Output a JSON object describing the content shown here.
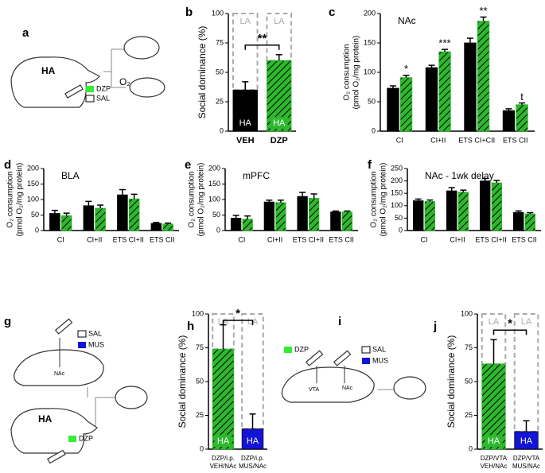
{
  "chart_data": [
    {
      "type": "bar",
      "panel": "b",
      "ylabel": [
        "Social dominance (%)"
      ],
      "categories": [
        [
          "VEH"
        ],
        [
          "DZP"
        ]
      ],
      "values": [
        35,
        60
      ],
      "errors": [
        7,
        5
      ],
      "bar_colors": [
        "#000000",
        "#2db82d"
      ],
      "bar_hatch": [
        false,
        true
      ],
      "bar_labels": [
        "HA",
        "HA"
      ],
      "top_labels": [
        "LA",
        "LA"
      ],
      "brackets": [
        {
          "text": "**",
          "between": [
            0,
            1
          ]
        }
      ],
      "ylim": [
        0,
        100
      ],
      "yticks": [
        0,
        25,
        50,
        75,
        100
      ]
    },
    {
      "type": "bar",
      "panel": "c",
      "title": "NAc",
      "ylabel": [
        "O₂ consumption",
        "(pmol O₂/mg protein)"
      ],
      "categories": [
        [
          "CI"
        ],
        [
          "CI+II"
        ],
        [
          "ETS CI+CII"
        ],
        [
          "ETS CII"
        ]
      ],
      "series": [
        {
          "color": "#000000",
          "values": [
            73,
            108,
            150,
            35
          ],
          "errors": [
            4,
            4,
            8,
            3
          ]
        },
        {
          "color": "#2db82d",
          "hatch": true,
          "values": [
            91,
            135,
            187,
            45
          ],
          "errors": [
            4,
            4,
            7,
            3
          ]
        }
      ],
      "annotations": [
        {
          "text": "*",
          "category": 0
        },
        {
          "text": "***",
          "category": 1
        },
        {
          "text": "**",
          "category": 2
        },
        {
          "text": "t",
          "category": 3
        }
      ],
      "ylim": [
        0,
        200
      ],
      "yticks": [
        0,
        50,
        100,
        150,
        200
      ]
    },
    {
      "type": "bar",
      "panel": "d",
      "title": "BLA",
      "ylabel": [
        "O₂ consumption",
        "(pmol O₂/mg protein)"
      ],
      "categories": [
        [
          "CI"
        ],
        [
          "CI+II"
        ],
        [
          "ETS CI+II"
        ],
        [
          "ETS CII"
        ]
      ],
      "series": [
        {
          "color": "#000000",
          "values": [
            55,
            80,
            115,
            23
          ],
          "errors": [
            10,
            14,
            17,
            3
          ]
        },
        {
          "color": "#2db82d",
          "hatch": true,
          "values": [
            48,
            72,
            102,
            21
          ],
          "errors": [
            8,
            10,
            15,
            3
          ]
        }
      ],
      "ylim": [
        0,
        200
      ],
      "yticks": [
        0,
        50,
        100,
        150,
        200
      ]
    },
    {
      "type": "bar",
      "panel": "e",
      "title": "mPFC",
      "ylabel": [
        "O₂ consumption",
        "(pmol O₂/mg protein)"
      ],
      "categories": [
        [
          "CI"
        ],
        [
          "CI+II"
        ],
        [
          "ETS CI+II"
        ],
        [
          "ETS CII"
        ]
      ],
      "series": [
        {
          "color": "#000000",
          "values": [
            40,
            92,
            110,
            60
          ],
          "errors": [
            9,
            6,
            13,
            3
          ]
        },
        {
          "color": "#2db82d",
          "hatch": true,
          "values": [
            37,
            90,
            104,
            60
          ],
          "errors": [
            10,
            8,
            14,
            3
          ]
        }
      ],
      "ylim": [
        0,
        200
      ],
      "yticks": [
        0,
        50,
        100,
        150,
        200
      ]
    },
    {
      "type": "bar",
      "panel": "f",
      "title": "NAc - 1wk delay",
      "ylabel": [
        "O₂ consumption",
        "(pmol O₂/mg protein)"
      ],
      "categories": [
        [
          "CI"
        ],
        [
          "CI+II"
        ],
        [
          "ETS CI+II"
        ],
        [
          "ETS CII"
        ]
      ],
      "series": [
        {
          "color": "#000000",
          "values": [
            120,
            160,
            200,
            73
          ],
          "errors": [
            7,
            13,
            10,
            6
          ]
        },
        {
          "color": "#2db82d",
          "hatch": true,
          "values": [
            117,
            155,
            192,
            67
          ],
          "errors": [
            6,
            8,
            10,
            5
          ]
        }
      ],
      "ylim": [
        0,
        250
      ],
      "yticks": [
        0,
        50,
        100,
        150,
        200,
        250
      ]
    },
    {
      "type": "bar",
      "panel": "h",
      "ylabel": [
        "Social dominance (%)"
      ],
      "categories": [
        [
          "DZP/i.p.",
          "VEH/NAc"
        ],
        [
          "DZP/i.p.",
          "MUS/NAc"
        ]
      ],
      "values": [
        74,
        15
      ],
      "errors": [
        18,
        11
      ],
      "bar_colors": [
        "#2db82d",
        "#1414d8"
      ],
      "bar_hatch": [
        true,
        false
      ],
      "bar_labels": [
        "HA",
        "HA"
      ],
      "top_labels": [
        "LA",
        "LA"
      ],
      "brackets": [
        {
          "text": "*",
          "between": [
            0,
            1
          ]
        }
      ],
      "ylim": [
        0,
        100
      ],
      "yticks": [
        0,
        25,
        50,
        75,
        100
      ]
    },
    {
      "type": "bar",
      "panel": "j",
      "ylabel": [
        "Social dominance (%)"
      ],
      "categories": [
        [
          "DZP/VTA",
          "VEH/NAc"
        ],
        [
          "DZP/VTA",
          "MUS/NAc"
        ]
      ],
      "values": [
        63,
        13
      ],
      "errors": [
        18,
        8
      ],
      "bar_colors": [
        "#2db82d",
        "#1414d8"
      ],
      "bar_hatch": [
        true,
        false
      ],
      "bar_labels": [
        "HA",
        "HA"
      ],
      "top_labels": [
        "LA",
        "LA"
      ],
      "brackets": [
        {
          "text": "*",
          "between": [
            0,
            1
          ]
        }
      ],
      "ylim": [
        0,
        100
      ],
      "yticks": [
        0,
        25,
        50,
        75,
        100
      ]
    }
  ],
  "diagrams": [
    {
      "panel": "a",
      "labels": [
        "HA",
        "DZP",
        "SAL",
        "O₂"
      ]
    },
    {
      "panel": "g",
      "labels": [
        "SAL",
        "MUS",
        "NAc",
        "HA",
        "DZP"
      ]
    },
    {
      "panel": "i",
      "labels": [
        "DZP",
        "SAL",
        "MUS",
        "VTA",
        "NAc"
      ]
    }
  ]
}
